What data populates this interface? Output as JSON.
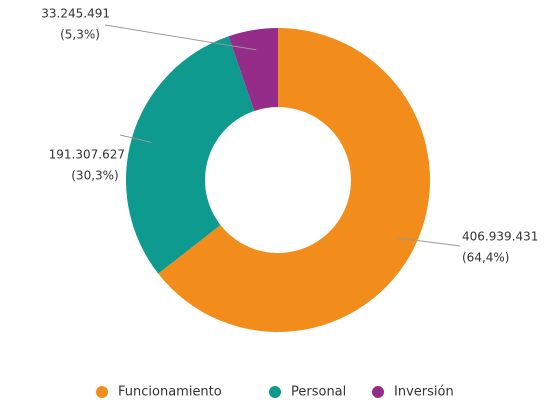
{
  "chart_data": {
    "type": "donut",
    "categories": [
      "Funcionamiento",
      "Personal",
      "Inversión"
    ],
    "values": [
      406939431,
      191307627,
      33245491
    ],
    "value_labels": [
      "406.939.431",
      "191.307.627",
      "33.245.491"
    ],
    "percent_labels": [
      "(64,4%)",
      "(30,3%)",
      "(5,3%)"
    ],
    "colors": [
      "#f28c1a",
      "#0e9a8e",
      "#952c8a"
    ],
    "legend": "bottom"
  }
}
